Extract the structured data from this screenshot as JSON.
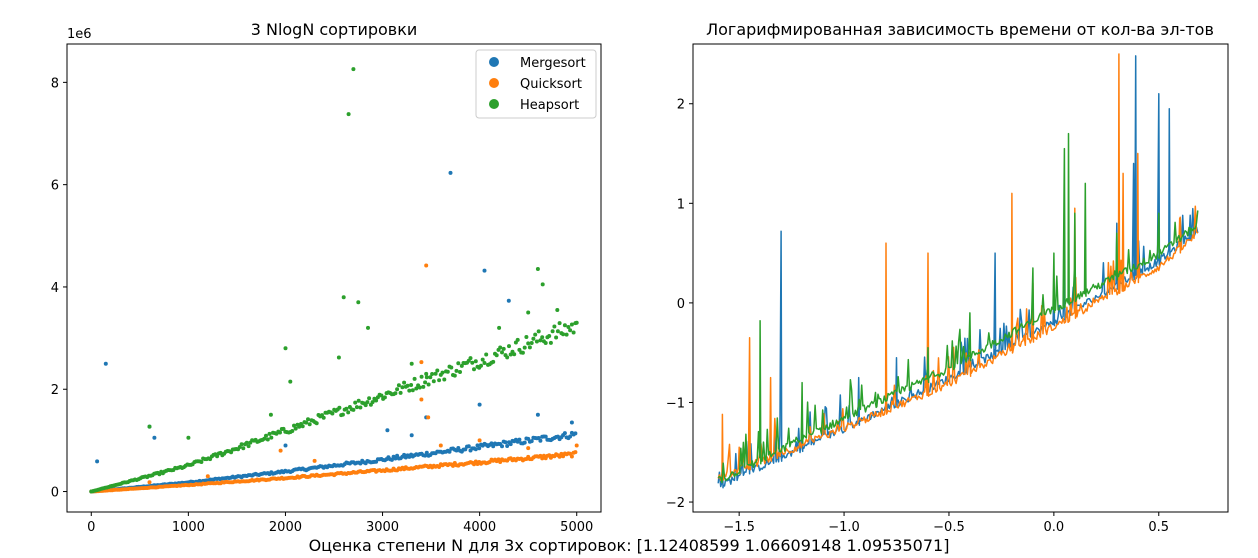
{
  "caption": "Оценка степени N для 3х сортировок: [1.12408599 1.06609148 1.09535071]",
  "colors": {
    "Mergesort": "#1f77b4",
    "Quicksort": "#ff7f0e",
    "Heapsort": "#2ca02c"
  },
  "chart_data": [
    {
      "type": "scatter",
      "title": "3 NlogN сортировки",
      "xlim": [
        -250,
        5250
      ],
      "ylim": [
        -400000,
        8750000
      ],
      "x_ticks": [
        0,
        1000,
        2000,
        3000,
        4000,
        5000
      ],
      "x_tick_labels": [
        "0",
        "1000",
        "2000",
        "3000",
        "4000",
        "5000"
      ],
      "y_ticks": [
        0,
        2000000,
        4000000,
        6000000,
        8000000
      ],
      "y_tick_labels": [
        "0",
        "2",
        "4",
        "6",
        "8"
      ],
      "y_offset_label": "1e6",
      "legend": {
        "position": "top-right",
        "entries": [
          "Mergesort",
          "Quicksort",
          "Heapsort"
        ]
      },
      "grid": false,
      "series": [
        {
          "name": "Mergesort",
          "trend": [
            [
              0,
              0
            ],
            [
              1000,
              170000
            ],
            [
              2000,
              370000
            ],
            [
              3000,
              590000
            ],
            [
              4000,
              820000
            ],
            [
              5000,
              1060000
            ]
          ],
          "outliers": [
            [
              60,
              590000
            ],
            [
              150,
              2500000
            ],
            [
              600,
              1270000
            ],
            [
              650,
              1050000
            ],
            [
              2000,
              900000
            ],
            [
              3050,
              1200000
            ],
            [
              3300,
              1100000
            ],
            [
              3450,
              1450000
            ],
            [
              3700,
              6230000
            ],
            [
              4000,
              1700000
            ],
            [
              4050,
              4320000
            ],
            [
              4300,
              3730000
            ],
            [
              4600,
              1500000
            ],
            [
              4950,
              1350000
            ]
          ]
        },
        {
          "name": "Quicksort",
          "trend": [
            [
              0,
              0
            ],
            [
              1000,
              120000
            ],
            [
              2000,
              250000
            ],
            [
              3000,
              390000
            ],
            [
              4000,
              540000
            ],
            [
              5000,
              690000
            ]
          ],
          "outliers": [
            [
              600,
              180000
            ],
            [
              1200,
              300000
            ],
            [
              1950,
              800000
            ],
            [
              2300,
              600000
            ],
            [
              3400,
              2530000
            ],
            [
              3450,
              4420000
            ],
            [
              3470,
              1450000
            ],
            [
              3400,
              1800000
            ],
            [
              3600,
              900000
            ],
            [
              4000,
              1000000
            ],
            [
              4500,
              850000
            ],
            [
              5000,
              900000
            ]
          ]
        },
        {
          "name": "Heapsort",
          "trend": [
            [
              0,
              0
            ],
            [
              1000,
              480000
            ],
            [
              2000,
              1120000
            ],
            [
              3000,
              1770000
            ],
            [
              4000,
              2420000
            ],
            [
              5000,
              3060000
            ]
          ],
          "outliers": [
            [
              600,
              1270000
            ],
            [
              1000,
              1050000
            ],
            [
              1850,
              1500000
            ],
            [
              2000,
              2800000
            ],
            [
              2050,
              2150000
            ],
            [
              2550,
              2620000
            ],
            [
              2600,
              3800000
            ],
            [
              2650,
              7380000
            ],
            [
              2700,
              8260000
            ],
            [
              2750,
              3700000
            ],
            [
              2850,
              3200000
            ],
            [
              3300,
              2500000
            ],
            [
              3450,
              2300000
            ],
            [
              4200,
              3200000
            ],
            [
              4500,
              3500000
            ],
            [
              4600,
              4350000
            ],
            [
              4650,
              4050000
            ],
            [
              4800,
              3550000
            ],
            [
              5000,
              3300000
            ]
          ]
        }
      ]
    },
    {
      "type": "line",
      "title": "Логарифмированная зависимость времени от кол-ва эл-тов",
      "xlim": [
        -1.72,
        0.83
      ],
      "ylim": [
        -2.1,
        2.6
      ],
      "x_ticks": [
        -1.5,
        -1.0,
        -0.5,
        0.0,
        0.5
      ],
      "x_tick_labels": [
        "−1.5",
        "−1.0",
        "−0.5",
        "0.0",
        "0.5"
      ],
      "y_ticks": [
        -2,
        -1,
        0,
        1,
        2
      ],
      "y_tick_labels": [
        "−2",
        "−1",
        "0",
        "1",
        "2"
      ],
      "grid": false,
      "series": [
        {
          "name": "Mergesort",
          "trend": [
            [
              -1.6,
              -1.88
            ],
            [
              -1.0,
              -1.3
            ],
            [
              -0.5,
              -0.8
            ],
            [
              0.0,
              -0.23
            ],
            [
              0.5,
              0.38
            ],
            [
              0.69,
              0.7
            ]
          ],
          "spikes": [
            [
              -1.58,
              -1.45
            ],
            [
              -1.3,
              0.72
            ],
            [
              -1.2,
              -1.1
            ],
            [
              -0.93,
              -0.75
            ],
            [
              -0.75,
              -0.55
            ],
            [
              -0.28,
              0.5
            ],
            [
              0.0,
              0.15
            ],
            [
              0.05,
              0.3
            ],
            [
              0.3,
              0.8
            ],
            [
              0.38,
              1.4
            ],
            [
              0.39,
              2.48
            ],
            [
              0.5,
              2.1
            ],
            [
              0.55,
              1.95
            ],
            [
              0.65,
              0.88
            ]
          ]
        },
        {
          "name": "Quicksort",
          "trend": [
            [
              -1.6,
              -1.8
            ],
            [
              -1.0,
              -1.3
            ],
            [
              -0.5,
              -0.85
            ],
            [
              0.0,
              -0.28
            ],
            [
              0.5,
              0.32
            ],
            [
              0.69,
              0.66
            ]
          ],
          "spikes": [
            [
              -1.58,
              -1.12
            ],
            [
              -1.5,
              -1.45
            ],
            [
              -1.45,
              -0.35
            ],
            [
              -1.35,
              -0.75
            ],
            [
              -0.8,
              0.6
            ],
            [
              -0.6,
              0.5
            ],
            [
              -0.4,
              -0.55
            ],
            [
              -0.2,
              1.1
            ],
            [
              -0.1,
              0.2
            ],
            [
              0.1,
              0.95
            ],
            [
              0.31,
              2.5
            ],
            [
              0.33,
              1.3
            ],
            [
              0.4,
              1.5
            ],
            [
              0.6,
              0.85
            ]
          ]
        },
        {
          "name": "Heapsort",
          "trend": [
            [
              -1.6,
              -1.83
            ],
            [
              -1.0,
              -1.2
            ],
            [
              -0.5,
              -0.7
            ],
            [
              0.0,
              -0.1
            ],
            [
              0.5,
              0.45
            ],
            [
              0.69,
              0.75
            ]
          ],
          "spikes": [
            [
              -1.4,
              -0.18
            ],
            [
              -1.2,
              -0.8
            ],
            [
              -0.85,
              -0.9
            ],
            [
              -0.6,
              -0.45
            ],
            [
              -0.4,
              -0.1
            ],
            [
              -0.1,
              0.35
            ],
            [
              0.0,
              0.5
            ],
            [
              0.05,
              1.55
            ],
            [
              0.07,
              1.7
            ],
            [
              0.1,
              0.9
            ],
            [
              0.15,
              1.2
            ],
            [
              0.3,
              0.7
            ],
            [
              0.5,
              0.9
            ],
            [
              0.65,
              0.75
            ]
          ]
        }
      ]
    }
  ]
}
